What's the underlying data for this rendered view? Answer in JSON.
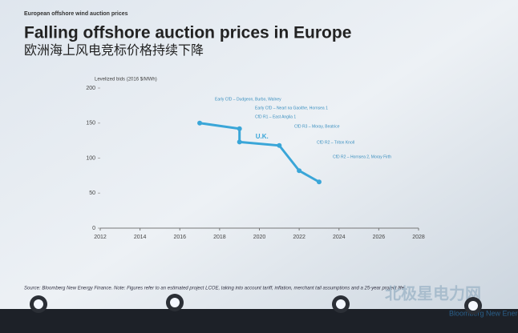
{
  "chart_data": {
    "type": "line",
    "kicker": "European offshore wind auction prices",
    "title": "Falling offshore auction prices in Europe",
    "subtitle": "欧洲海上风电竞标价格持续下降",
    "y_label": "Levelized bids (2016 $/MWh)",
    "series": [
      {
        "name": "U.K.",
        "color": "#3aa6d8",
        "x": [
          2017,
          2019,
          2019,
          2021,
          2022,
          2023
        ],
        "values": [
          150,
          142,
          123,
          118,
          82,
          66
        ]
      }
    ],
    "annotations": [
      "Early CfD – Dudgeon, Burbo, Walney",
      "Early CfD – Neart na Gaoithe, Hornsea 1",
      "CfD R1 – East Anglia 1",
      "CfD R3 – Moray, Beatrice",
      "CfD R2 – Triton Knoll",
      "CfD R2 – Hornsea 2, Moray Firth"
    ],
    "xlim": [
      2012,
      2028
    ],
    "xticks": [
      2012,
      2014,
      2016,
      2018,
      2020,
      2022,
      2024,
      2026,
      2028
    ],
    "ylim": [
      0,
      200
    ],
    "yticks": [
      0,
      50,
      100,
      150,
      200
    ],
    "source": "Source: Bloomberg New Energy Finance. Note: Figures refer to an estimated project LCOE, taking into account tariff, inflation, merchant tail assumptions and a 25-year project life",
    "footer": "Bloomberg New Energy Finance",
    "watermark": "北极星电力网"
  }
}
